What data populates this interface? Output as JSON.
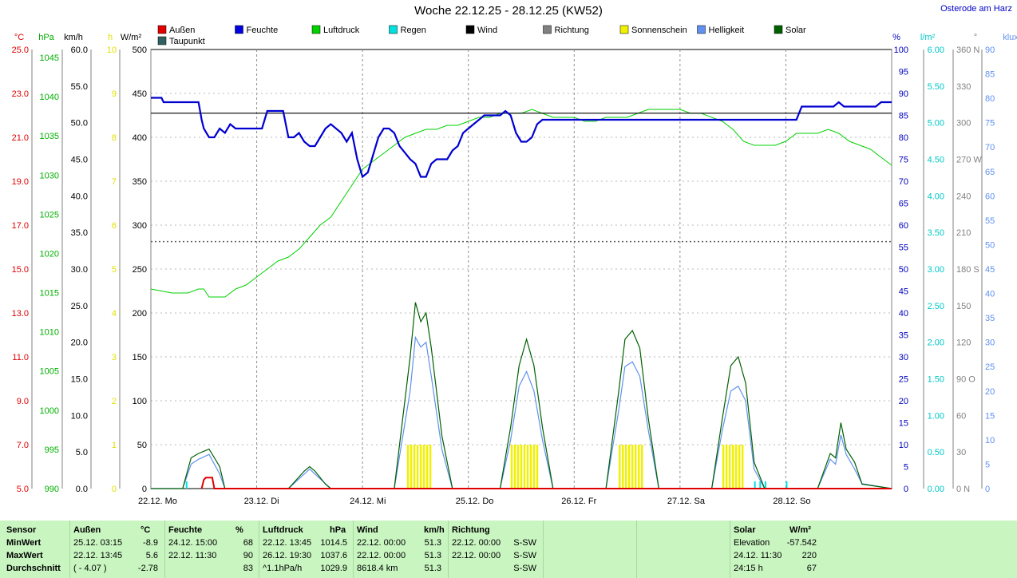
{
  "title": "Woche 22.12.25 - 28.12.25 (KW52)",
  "location": "Osterode am Harz",
  "legend": [
    {
      "label": "Außen",
      "color": "#e00000"
    },
    {
      "label": "Feuchte",
      "color": "#0000e0"
    },
    {
      "label": "Luftdruck",
      "color": "#00d000"
    },
    {
      "label": "Regen",
      "color": "#00e0e0"
    },
    {
      "label": "Wind",
      "color": "#000000"
    },
    {
      "label": "Richtung",
      "color": "#808080"
    },
    {
      "label": "Sonnenschein",
      "color": "#f0f000"
    },
    {
      "label": "Helligkeit",
      "color": "#6090f0"
    },
    {
      "label": "Solar",
      "color": "#006000"
    },
    {
      "label": "Taupunkt",
      "color": "#306060"
    }
  ],
  "axes": {
    "temp": {
      "unit": "°C",
      "color": "#e00000",
      "ticks": [
        "25.0",
        "23.0",
        "21.0",
        "19.0",
        "17.0",
        "15.0",
        "13.0",
        "11.0",
        "9.0",
        "7.0",
        "5.0"
      ]
    },
    "pressure": {
      "unit": "hPa",
      "color": "#00b000",
      "ticks": [
        "1045",
        "1040",
        "1035",
        "1030",
        "1025",
        "1020",
        "1015",
        "1010",
        "1005",
        "1000",
        "995",
        "990"
      ]
    },
    "wind": {
      "unit": "km/h",
      "color": "#000000",
      "ticks": [
        "60.0",
        "55.0",
        "50.0",
        "45.0",
        "40.0",
        "35.0",
        "30.0",
        "25.0",
        "20.0",
        "15.0",
        "10.0",
        "5.0",
        "0.0"
      ]
    },
    "sun": {
      "unit": "h",
      "color": "#e0e000",
      "ticks": [
        "10",
        "9",
        "8",
        "7",
        "6",
        "5",
        "4",
        "3",
        "2",
        "1",
        "0"
      ]
    },
    "solar": {
      "unit": "W/m²",
      "color": "#000000",
      "ticks": [
        "500",
        "450",
        "400",
        "350",
        "300",
        "250",
        "200",
        "150",
        "100",
        "50",
        "0"
      ]
    },
    "humidity": {
      "unit": "%",
      "color": "#0000c0",
      "ticks": [
        "100",
        "95",
        "90",
        "85",
        "80",
        "75",
        "70",
        "65",
        "60",
        "55",
        "50",
        "45",
        "40",
        "35",
        "30",
        "25",
        "20",
        "15",
        "10",
        "5",
        "0"
      ]
    },
    "rain": {
      "unit": "l/m²",
      "color": "#00c8c8",
      "ticks": [
        "6.00",
        "5.50",
        "5.00",
        "4.50",
        "4.00",
        "3.50",
        "3.00",
        "2.50",
        "2.00",
        "1.50",
        "1.00",
        "0.50",
        "0.00"
      ]
    },
    "direction": {
      "unit": "°",
      "color": "#808080",
      "ticks": [
        "360 N",
        "330",
        "300",
        "270 W",
        "240",
        "210",
        "180 S",
        "150",
        "120",
        "90 O",
        "60",
        "30",
        "0 N"
      ]
    },
    "lux": {
      "unit": "klux",
      "color": "#6090f0",
      "ticks": [
        "90",
        "85",
        "80",
        "75",
        "70",
        "65",
        "60",
        "55",
        "50",
        "45",
        "40",
        "35",
        "30",
        "25",
        "20",
        "15",
        "10",
        "5",
        "0"
      ]
    }
  },
  "x_labels": [
    "22.12.  Mo",
    "23.12.  Di",
    "24.12.  Mi",
    "25.12.  Do",
    "26.12.  Fr",
    "27.12.  Sa",
    "28.12.  So"
  ],
  "chart_data": {
    "type": "line",
    "title": "Woche 22.12.25 - 28.12.25 (KW52)",
    "x_unit": "day (0 = 22.12. 00:00)",
    "xlim": [
      0,
      7
    ],
    "series": [
      {
        "name": "Feuchte",
        "unit": "%",
        "x": [
          0,
          0.1,
          0.12,
          0.45,
          0.48,
          0.5,
          0.55,
          0.6,
          0.65,
          0.7,
          0.75,
          0.8,
          0.85,
          0.9,
          1.05,
          1.1,
          1.15,
          1.25,
          1.3,
          1.35,
          1.4,
          1.45,
          1.5,
          1.55,
          1.6,
          1.65,
          1.7,
          1.8,
          1.85,
          1.9,
          1.95,
          2.0,
          2.05,
          2.1,
          2.15,
          2.2,
          2.25,
          2.3,
          2.35,
          2.45,
          2.5,
          2.55,
          2.6,
          2.65,
          2.7,
          2.75,
          2.8,
          2.85,
          2.9,
          2.95,
          3.0,
          3.05,
          3.1,
          3.15,
          3.2,
          3.3,
          3.35,
          3.4,
          3.45,
          3.5,
          3.55,
          3.6,
          3.65,
          3.7,
          3.75,
          3.85,
          4.0,
          5.0,
          6.0,
          6.1,
          6.15,
          6.3,
          6.45,
          6.5,
          6.55,
          6.7,
          6.85,
          6.9,
          7.0
        ],
        "values": [
          89,
          89,
          88,
          88,
          84,
          82,
          80,
          80,
          82,
          81,
          83,
          82,
          82,
          82,
          82,
          86,
          86,
          86,
          80,
          80,
          81,
          79,
          78,
          78,
          80,
          82,
          83,
          81,
          79,
          81,
          75,
          71,
          72,
          76,
          80,
          82,
          82,
          81,
          78,
          75,
          74,
          71,
          71,
          74,
          75,
          75,
          75,
          77,
          78,
          81,
          82,
          83,
          84,
          85,
          85,
          85,
          86,
          85,
          81,
          79,
          79,
          80,
          83,
          84,
          84,
          84,
          84,
          84,
          84,
          84,
          87,
          87,
          87,
          88,
          87,
          87,
          87,
          88,
          88
        ]
      },
      {
        "name": "Luftdruck",
        "unit": "hPa",
        "x": [
          0,
          0.2,
          0.35,
          0.45,
          0.5,
          0.55,
          0.7,
          0.8,
          0.9,
          1.0,
          1.1,
          1.2,
          1.3,
          1.4,
          1.5,
          1.6,
          1.7,
          1.8,
          1.9,
          2.0,
          2.1,
          2.2,
          2.3,
          2.4,
          2.5,
          2.6,
          2.7,
          2.8,
          2.9,
          3.0,
          3.1,
          3.2,
          3.3,
          3.4,
          3.5,
          3.6,
          3.7,
          3.8,
          3.9,
          4.0,
          4.1,
          4.2,
          4.3,
          4.4,
          4.5,
          4.6,
          4.7,
          4.8,
          4.9,
          5.0,
          5.1,
          5.2,
          5.3,
          5.4,
          5.5,
          5.6,
          5.7,
          5.8,
          5.9,
          6.0,
          6.1,
          6.2,
          6.3,
          6.4,
          6.5,
          6.6,
          6.7,
          6.8,
          6.9,
          7.0
        ],
        "values": [
          1015,
          1014.5,
          1014.5,
          1015,
          1015,
          1014,
          1014,
          1015,
          1015.5,
          1016.5,
          1017.5,
          1018.5,
          1019,
          1020,
          1021.5,
          1023,
          1024,
          1026,
          1028,
          1030,
          1031,
          1032,
          1033,
          1034,
          1034.5,
          1035,
          1035,
          1035.5,
          1035.5,
          1036,
          1036.5,
          1036.5,
          1037,
          1037,
          1037,
          1037.5,
          1037,
          1036.5,
          1036.5,
          1036.5,
          1036,
          1036,
          1036.5,
          1036.5,
          1036.5,
          1037,
          1037.5,
          1037.5,
          1037.5,
          1037.5,
          1037,
          1037,
          1036.5,
          1036,
          1035,
          1033.5,
          1033,
          1033,
          1033,
          1033.5,
          1034.5,
          1034.5,
          1034.5,
          1035,
          1034.5,
          1033.5,
          1033,
          1032.5,
          1031.5,
          1030.5
        ]
      },
      {
        "name": "Solar",
        "unit": "W/m²",
        "x": [
          0,
          0.3,
          0.38,
          0.45,
          0.55,
          0.65,
          0.7,
          1.3,
          1.45,
          1.5,
          1.55,
          1.65,
          1.7,
          2.3,
          2.45,
          2.5,
          2.55,
          2.6,
          2.65,
          2.75,
          2.85,
          3.3,
          3.4,
          3.48,
          3.55,
          3.62,
          3.7,
          3.8,
          4.3,
          4.42,
          4.48,
          4.55,
          4.62,
          4.7,
          4.8,
          5.3,
          5.4,
          5.48,
          5.55,
          5.62,
          5.7,
          5.8,
          6.3,
          6.42,
          6.47,
          6.52,
          6.57,
          6.65,
          6.72,
          7.0
        ],
        "values": [
          0,
          0,
          35,
          40,
          45,
          25,
          0,
          0,
          20,
          25,
          20,
          5,
          0,
          0,
          150,
          212,
          190,
          200,
          160,
          60,
          0,
          0,
          70,
          140,
          170,
          140,
          70,
          0,
          0,
          110,
          170,
          180,
          160,
          80,
          0,
          0,
          80,
          140,
          150,
          120,
          30,
          0,
          0,
          40,
          35,
          75,
          45,
          30,
          5,
          0
        ]
      },
      {
        "name": "Helligkeit",
        "unit": "klux",
        "x": [
          0,
          0.3,
          0.38,
          0.45,
          0.55,
          0.65,
          0.7,
          1.3,
          1.45,
          1.5,
          1.55,
          1.65,
          1.7,
          2.3,
          2.45,
          2.5,
          2.55,
          2.6,
          2.65,
          2.75,
          2.85,
          3.3,
          3.4,
          3.48,
          3.55,
          3.62,
          3.7,
          3.8,
          4.3,
          4.42,
          4.48,
          4.55,
          4.62,
          4.7,
          4.8,
          5.3,
          5.4,
          5.48,
          5.55,
          5.62,
          5.7,
          5.8,
          6.3,
          6.42,
          6.47,
          6.52,
          6.57,
          6.65,
          6.72,
          7.0
        ],
        "values": [
          0,
          0,
          5,
          6,
          7,
          3,
          0,
          0,
          3,
          4,
          3,
          1,
          0,
          0,
          20,
          31,
          29,
          30,
          23,
          8,
          0,
          0,
          10,
          21,
          24,
          20,
          10,
          0,
          0,
          16,
          25,
          26,
          23,
          12,
          0,
          0,
          12,
          20,
          21,
          18,
          4,
          0,
          0,
          6,
          5,
          11,
          7,
          4,
          1,
          0
        ]
      },
      {
        "name": "Außen",
        "unit": "°C",
        "x": [
          0.48,
          0.5,
          0.52,
          0.58,
          0.6,
          7.0
        ],
        "values": [
          5,
          5.4,
          5.5,
          5.5,
          5,
          5
        ]
      },
      {
        "name": "Wind",
        "unit": "km/h",
        "x": [
          0,
          7
        ],
        "values": [
          51.3,
          51.3
        ]
      },
      {
        "name": "Sonnenschein",
        "unit": "h",
        "x": [
          2.42,
          2.65,
          3.4,
          3.65,
          4.42,
          4.65,
          5.4,
          5.6
        ],
        "values": [
          1,
          1,
          1,
          1,
          1,
          1,
          1,
          1
        ]
      },
      {
        "name": "Regen",
        "unit": "l/m²",
        "x": [
          0.33,
          5.7,
          5.75,
          5.8,
          6.0
        ],
        "values": [
          0.1,
          0.1,
          0.1,
          0.1,
          0.1
        ]
      },
      {
        "name": "Richtung",
        "unit": "°",
        "x": [
          0,
          7
        ],
        "values": [
          202.5,
          202.5
        ]
      }
    ]
  },
  "table": {
    "row_labels": [
      "Sensor",
      "MinWert",
      "MaxWert",
      "Durchschnitt"
    ],
    "groups": [
      {
        "name": "Außen",
        "unit": "°C",
        "rows": [
          [
            "25.12.  03:15",
            "-8.9"
          ],
          [
            "22.12.  13:45",
            "5.6"
          ],
          [
            "( - 4.07 )",
            "-2.78"
          ]
        ]
      },
      {
        "name": "Feuchte",
        "unit": "%",
        "rows": [
          [
            "24.12.  15:00",
            "68"
          ],
          [
            "22.12.  11:30",
            "90"
          ],
          [
            "",
            "83"
          ]
        ]
      },
      {
        "name": "Luftdruck",
        "unit": "hPa",
        "rows": [
          [
            "22.12.  13:45",
            "1014.5"
          ],
          [
            "26.12.  19:30",
            "1037.6"
          ],
          [
            "^1.1hPa/h",
            "1029.9"
          ]
        ]
      },
      {
        "name": "Wind",
        "unit": "km/h",
        "rows": [
          [
            "22.12.  00:00",
            "51.3"
          ],
          [
            "22.12.  00:00",
            "51.3"
          ],
          [
            "8618.4 km",
            "51.3"
          ]
        ]
      },
      {
        "name": "Richtung",
        "unit": "",
        "rows": [
          [
            "22.12.  00:00",
            "S-SW"
          ],
          [
            "22.12.  00:00",
            "S-SW"
          ],
          [
            "",
            "S-SW"
          ]
        ]
      },
      {
        "name": "Solar",
        "unit": "W/m²",
        "rows": [
          [
            "Elevation",
            "-57.542"
          ],
          [
            "24.12.  11:30",
            "220"
          ],
          [
            "24:15 h",
            "67"
          ]
        ]
      }
    ]
  }
}
